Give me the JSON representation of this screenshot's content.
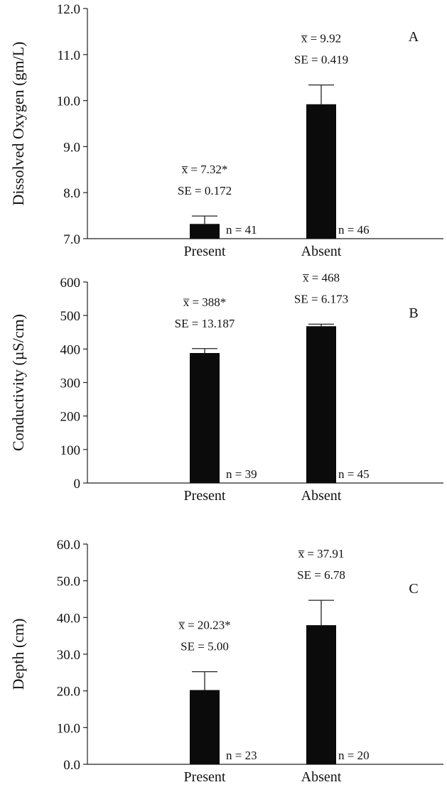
{
  "chart_data": [
    {
      "type": "bar",
      "panel_label": "A",
      "ylabel": "Dissolved Oxygen (gm/L)",
      "categories": [
        "Present",
        "Absent"
      ],
      "values": [
        7.32,
        9.92
      ],
      "se": [
        0.172,
        0.419
      ],
      "ylim": [
        7.0,
        12.0
      ],
      "yticks": [
        "7.0",
        "8.0",
        "9.0",
        "10.0",
        "11.0",
        "12.0"
      ],
      "mean_labels": [
        "x̅ = 7.32*",
        "x̅ = 9.92"
      ],
      "se_labels": [
        "SE = 0.172",
        "SE = 0.419"
      ],
      "n_labels": [
        "n = 41",
        "n = 46"
      ]
    },
    {
      "type": "bar",
      "panel_label": "B",
      "ylabel": "Conductivity (µS/cm)",
      "categories": [
        "Present",
        "Absent"
      ],
      "values": [
        388,
        468
      ],
      "se": [
        13.187,
        6.173
      ],
      "ylim": [
        0,
        600
      ],
      "yticks": [
        "0",
        "100",
        "200",
        "300",
        "400",
        "500",
        "600"
      ],
      "mean_labels": [
        "x̅ = 388*",
        "x̅ = 468"
      ],
      "se_labels": [
        "SE = 13.187",
        "SE = 6.173"
      ],
      "n_labels": [
        "n = 39",
        "n = 45"
      ]
    },
    {
      "type": "bar",
      "panel_label": "C",
      "ylabel": "Depth (cm)",
      "categories": [
        "Present",
        "Absent"
      ],
      "values": [
        20.23,
        37.91
      ],
      "se": [
        5.0,
        6.78
      ],
      "ylim": [
        0.0,
        60.0
      ],
      "yticks": [
        "0.0",
        "10.0",
        "20.0",
        "30.0",
        "40.0",
        "50.0",
        "60.0"
      ],
      "mean_labels": [
        "x̅ = 20.23*",
        "x̅ = 37.91"
      ],
      "se_labels": [
        "SE = 5.00",
        "SE = 6.78"
      ],
      "n_labels": [
        "n = 23",
        "n = 20"
      ]
    }
  ]
}
